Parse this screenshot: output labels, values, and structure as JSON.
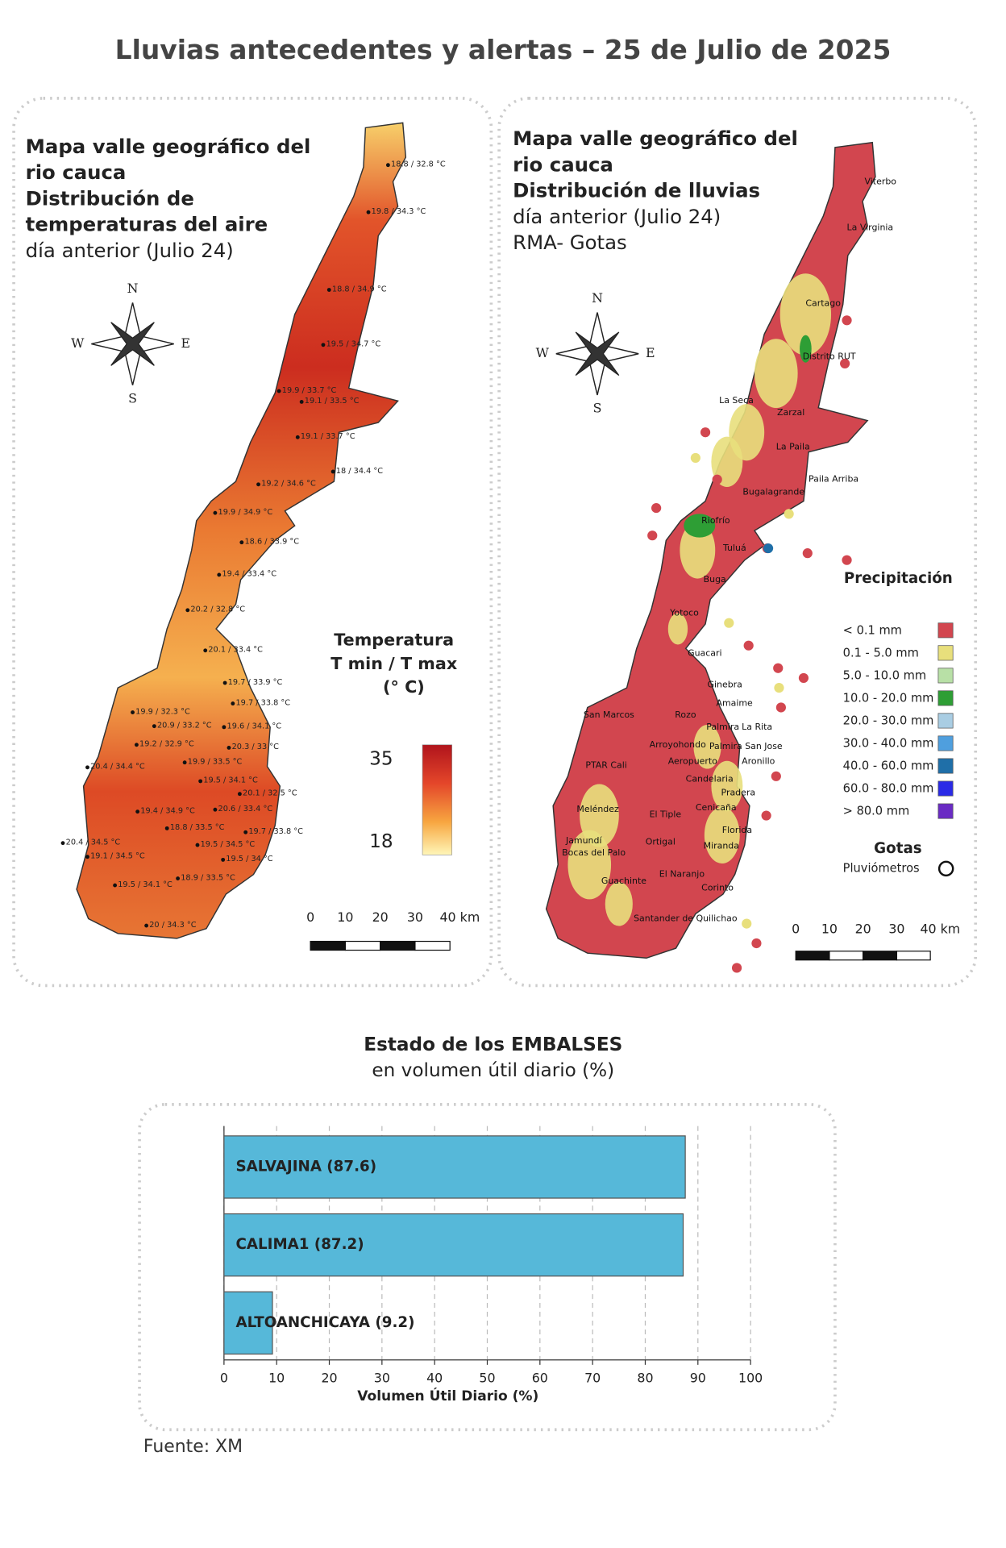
{
  "header": {
    "title": "Lluvias antecedentes y alertas – 25 de Julio de 2025"
  },
  "temperature_map": {
    "title_lines": [
      "Mapa valle geográfico del",
      "rio cauca",
      "Distribución de",
      "temperaturas del aire"
    ],
    "subtitle_lines": [
      "día anterior (Julio 24)"
    ],
    "compass": [
      "N",
      "W",
      "E",
      "S"
    ],
    "legend": {
      "title_lines": [
        "Temperatura",
        "T min / T max",
        "(° C)"
      ],
      "max_label": "35",
      "min_label": "18"
    },
    "scale_labels": [
      "0",
      "10",
      "20",
      "30",
      "40 km"
    ],
    "stations": [
      "18.8 / 32.8 °C",
      "19.8 / 34.3 °C",
      "18.8 / 34.9 °C",
      "19.5 / 34.7 °C",
      "19.9 / 33.7 °C",
      "19.1 / 33.5 °C",
      "19.1 / 33.7 °C",
      "18 / 34.4 °C",
      "19.2 / 34.6 °C",
      "19.9 / 34.9 °C",
      "18.6 / 33.9 °C",
      "19.4 / 33.4 °C",
      "20.2 / 32.8 °C",
      "20.1 / 33.4 °C",
      "19.7 / 33.9 °C",
      "19.7 / 33.8 °C",
      "19.9 / 32.3 °C",
      "20.9 / 33.2 °C",
      "19.6 / 34.1 °C",
      "19.2 / 32.9 °C",
      "20.3 / 33 °C",
      "20.4 / 34.4 °C",
      "19.9 / 33.5 °C",
      "19.5 / 34.1 °C",
      "20.1 / 32.5 °C",
      "19.4 / 34.9 °C",
      "20.6 / 33.4 °C",
      "18.8 / 33.5 °C",
      "19.7 / 33.8 °C",
      "20.4 / 34.5 °C",
      "19.5 / 34.5 °C",
      "19.1 / 34.5 °C",
      "19.5 / 34 °C",
      "18.9 / 33.5 °C",
      "19.5 / 34.1 °C",
      "20 / 34.3 °C"
    ]
  },
  "rain_map": {
    "title_lines": [
      "Mapa valle geográfico del",
      "rio cauca",
      "Distribución de lluvias"
    ],
    "subtitle_lines": [
      "día anterior (Julio 24)",
      "RMA- Gotas"
    ],
    "compass": [
      "N",
      "W",
      "E",
      "S"
    ],
    "legend": {
      "title": "Precipitación",
      "items": [
        {
          "label": "< 0.1 mm",
          "color": "#d2464f"
        },
        {
          "label": "0.1 - 5.0 mm",
          "color": "#e8df7c"
        },
        {
          "label": "5.0 - 10.0 mm",
          "color": "#b8e0a6"
        },
        {
          "label": "10.0 - 20.0 mm",
          "color": "#2e9e35"
        },
        {
          "label": "20.0 - 30.0 mm",
          "color": "#a9cde3"
        },
        {
          "label": "30.0 - 40.0 mm",
          "color": "#4f9fde"
        },
        {
          "label": "40.0 - 60.0 mm",
          "color": "#1f6fa8"
        },
        {
          "label": "60.0 - 80.0 mm",
          "color": "#2a2ae6"
        },
        {
          "label": "> 80.0 mm",
          "color": "#6a2bc4"
        }
      ],
      "gauges_title": "Gotas",
      "gauges_label": "Pluviómetros"
    },
    "scale_labels": [
      "0",
      "10",
      "20",
      "30",
      "40 km"
    ],
    "towns": [
      "Viterbo",
      "La Virginia",
      "Cartago",
      "Distrito RUT",
      "La Seca",
      "Zarzal",
      "La Paila",
      "Paila Arriba",
      "Bugalagrande",
      "Riofrío",
      "Tuluá",
      "Buga",
      "Yotoco",
      "Guacari",
      "Ginebra",
      "Amaime",
      "San Marcos",
      "Rozo",
      "Palmira",
      "La Rita",
      "Arroyohondo",
      "Palmira San Jose",
      "Aeropuerto",
      "Aronillo",
      "PTAR Cali",
      "Candelaria",
      "Pradera",
      "Meléndez",
      "Cenicaña",
      "El Tiple",
      "Florida",
      "Jamundí",
      "Ortigal",
      "Miranda",
      "Bocas del Palo",
      "El Naranjo",
      "Guachinte",
      "Corinto",
      "Santander de Quilichao"
    ]
  },
  "chart_data": {
    "type": "barh",
    "title": "Estado de los EMBALSES",
    "subtitle": "en volumen útil diario (%)",
    "categories": [
      "SALVAJINA (87.6)",
      "CALIMA1 (87.2)",
      "ALTOANCHICAYA (9.2)"
    ],
    "values": [
      87.6,
      87.2,
      9.2
    ],
    "color": "#56b8d9",
    "xlim": [
      0,
      100
    ],
    "xticks": [
      0,
      10,
      20,
      30,
      40,
      50,
      60,
      70,
      80,
      90,
      100
    ],
    "xlabel": "Volumen Útil Diario (%)",
    "grid": true
  },
  "footer": {
    "source": "Fuente: XM"
  }
}
